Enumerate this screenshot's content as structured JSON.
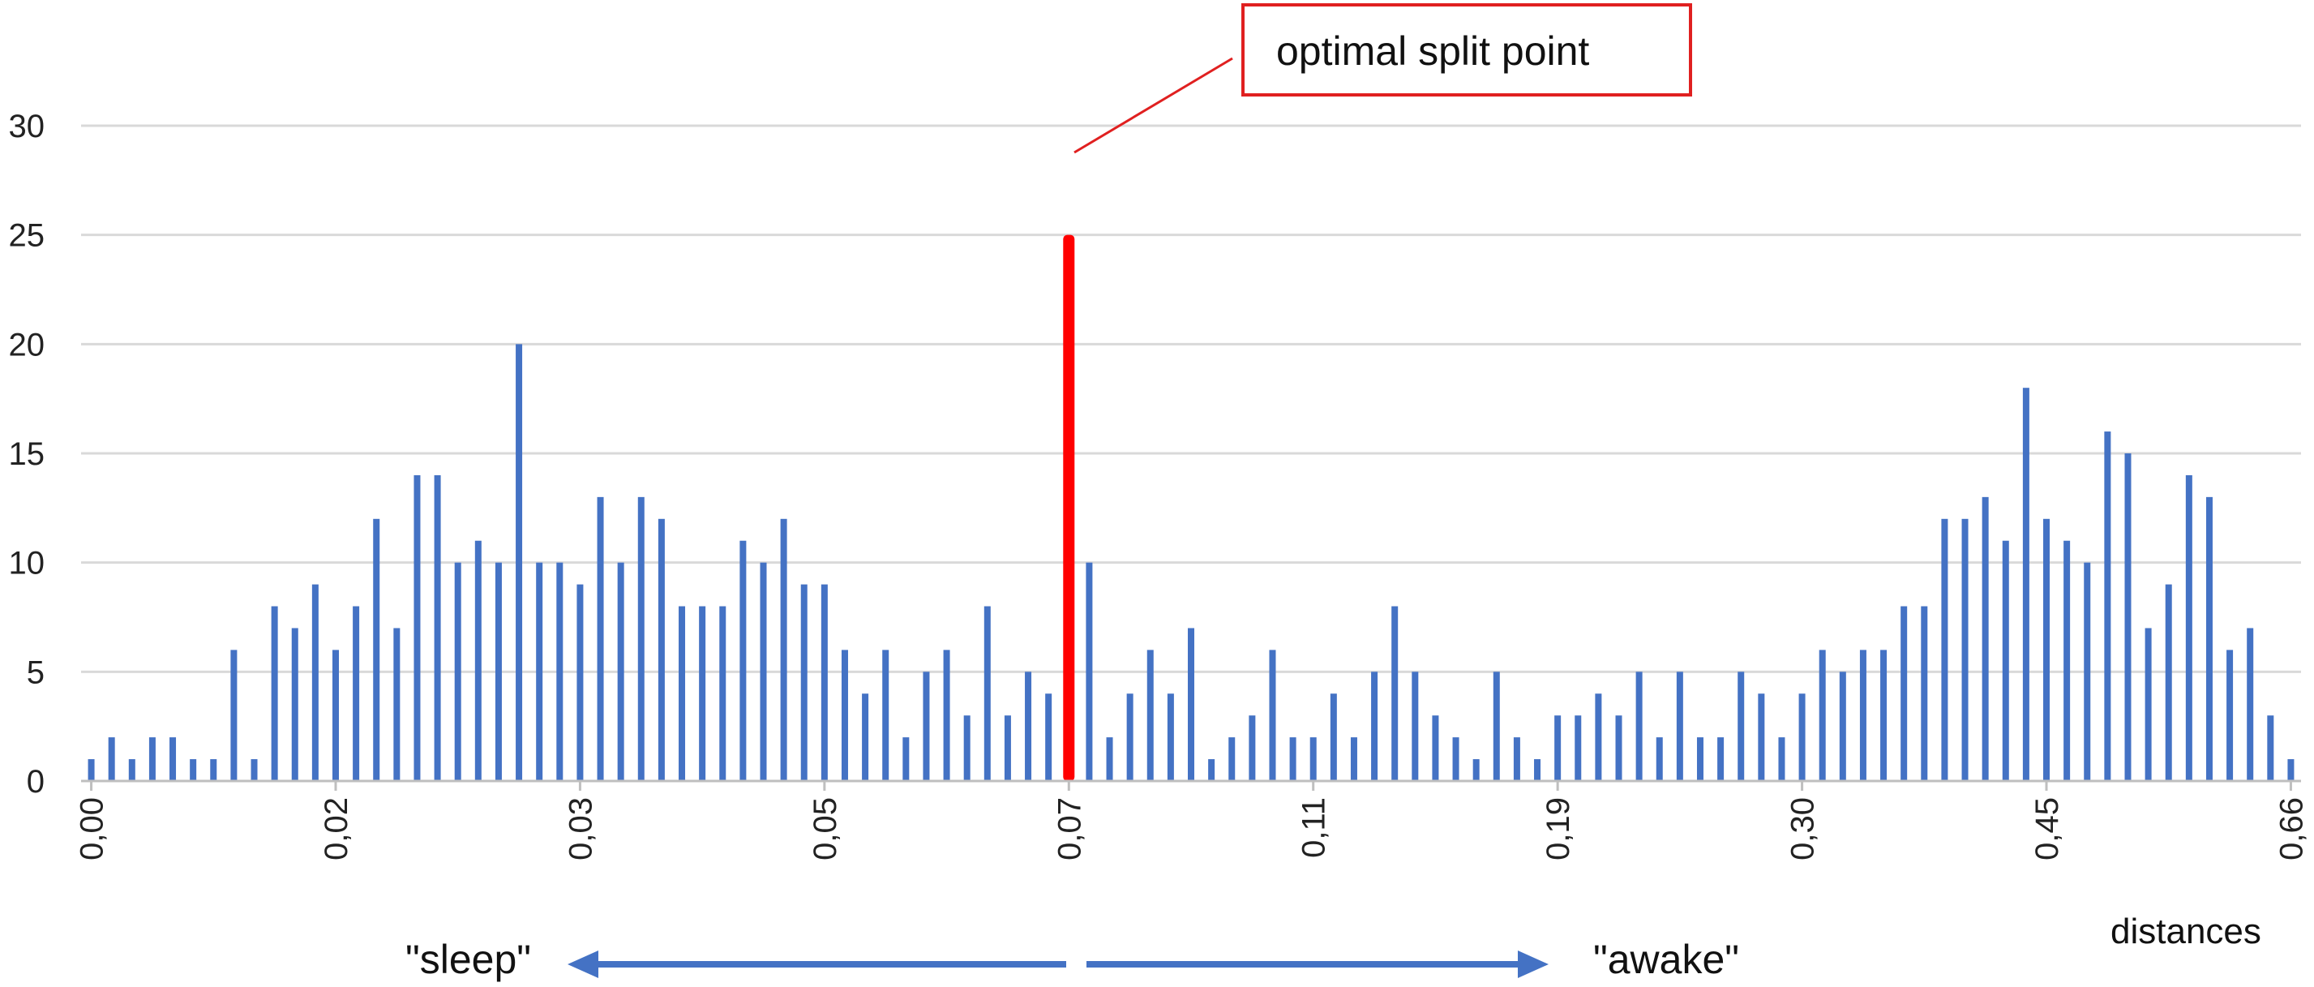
{
  "chart_data": {
    "type": "bar",
    "title": "",
    "xlabel": "distances",
    "ylabel": "",
    "ylim": [
      0,
      30
    ],
    "yticks": [
      "0",
      "5",
      "10",
      "15",
      "20",
      "25",
      "30"
    ],
    "grid": true,
    "x_tick_labels": [
      "0,00",
      "0,02",
      "0,03",
      "0,05",
      "0,07",
      "0,11",
      "0,19",
      "0,30",
      "0,45",
      "0,66"
    ],
    "values": [
      1,
      2,
      1,
      2,
      2,
      1,
      1,
      6,
      1,
      8,
      7,
      9,
      6,
      8,
      12,
      7,
      14,
      14,
      10,
      11,
      10,
      20,
      10,
      10,
      9,
      13,
      10,
      13,
      12,
      8,
      8,
      8,
      11,
      10,
      12,
      9,
      9,
      6,
      4,
      6,
      2,
      5,
      6,
      3,
      8,
      3,
      5,
      4,
      25,
      10,
      2,
      4,
      6,
      4,
      7,
      1,
      2,
      3,
      6,
      2,
      2,
      4,
      2,
      5,
      8,
      5,
      3,
      2,
      1,
      5,
      2,
      1,
      3,
      3,
      4,
      3,
      5,
      2,
      5,
      2,
      2,
      5,
      4,
      2,
      4,
      6,
      5,
      6,
      6,
      8,
      8,
      12,
      12,
      13,
      11,
      18,
      12,
      11,
      10,
      16,
      15,
      7,
      9,
      14,
      13,
      6,
      7,
      3,
      1
    ],
    "highlight_index": 48,
    "colors": {
      "bar": "#4472C4",
      "highlight": "#FF0000",
      "grid": "#D9D9D9",
      "arrow": "#4472C4"
    },
    "annotations": {
      "split_label": "optimal split point",
      "left_direction": "\"sleep\"",
      "right_direction": "\"awake\""
    }
  }
}
